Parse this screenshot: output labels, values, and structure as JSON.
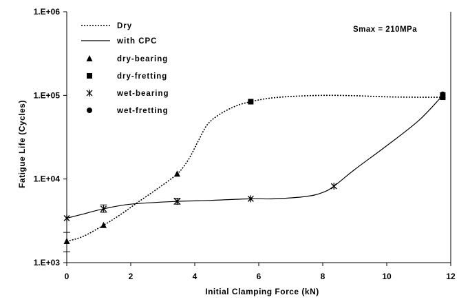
{
  "chart_data": {
    "type": "line",
    "xlabel": "Initial Clamping Force (kN)",
    "ylabel": "Fatigue Life (Cycles)",
    "xlim": [
      0,
      12
    ],
    "ylim": [
      1000,
      1000000
    ],
    "y_scale": "log",
    "x_ticks": [
      0,
      2,
      4,
      6,
      8,
      10,
      12
    ],
    "x_tick_labels": [
      "0",
      "2",
      "4",
      "6",
      "8",
      "10",
      "12"
    ],
    "y_ticks": [
      1000,
      10000,
      100000,
      1000000
    ],
    "y_tick_labels": [
      "1.E+03",
      "1.E+04",
      "1.E+05",
      "1.E+06"
    ],
    "grid": false,
    "legend_position": "top-left",
    "annotation": "Smax = 210MPa",
    "colors": {
      "lines": "#000000",
      "markers": "#000000",
      "axes": "#000000"
    },
    "lines": [
      {
        "name": "Dry",
        "style": "dotted",
        "x": [
          0,
          0.5,
          1.15,
          1.7,
          2.2,
          2.8,
          3.45,
          3.8,
          4.1,
          4.4,
          4.8,
          5.3,
          5.75,
          6.3,
          7.0,
          8.0,
          9.0,
          10.0,
          11.0,
          11.75
        ],
        "y": [
          1800,
          2050,
          2800,
          3800,
          5200,
          7500,
          11500,
          17000,
          28000,
          45000,
          60000,
          75000,
          84000,
          92000,
          97000,
          100000,
          99000,
          96000,
          95000,
          95000
        ]
      },
      {
        "name": "with CPC",
        "style": "solid",
        "x": [
          0,
          0.5,
          1.15,
          2.0,
          3.45,
          4.5,
          5.75,
          6.5,
          7.5,
          8.0,
          8.35,
          9.0,
          10.0,
          11.0,
          11.75
        ],
        "y": [
          3400,
          3800,
          4400,
          5000,
          5400,
          5550,
          5800,
          5800,
          6200,
          6900,
          8200,
          13000,
          25000,
          50000,
          100000
        ]
      }
    ],
    "series": [
      {
        "name": "dry-bearing",
        "marker": "triangle",
        "x": [
          0,
          1.15,
          3.45
        ],
        "y": [
          1800,
          2800,
          11500
        ]
      },
      {
        "name": "dry-fretting",
        "marker": "square",
        "x": [
          5.75,
          11.75
        ],
        "y": [
          84000,
          95000
        ]
      },
      {
        "name": "wet-bearing",
        "marker": "asterisk",
        "x": [
          0,
          1.15,
          3.45,
          5.75,
          8.35,
          11.75
        ],
        "y": [
          3400,
          4400,
          5400,
          5800,
          8200,
          100000
        ]
      },
      {
        "name": "wet-fretting",
        "marker": "circle",
        "x": [
          11.75
        ],
        "y": [
          103000
        ]
      }
    ],
    "error_bars": [
      {
        "x": 0,
        "low": 1350,
        "high": 2300
      },
      {
        "x": 1.15,
        "low": 4000,
        "high": 4900
      },
      {
        "x": 3.45,
        "low": 5000,
        "high": 5900
      }
    ]
  }
}
